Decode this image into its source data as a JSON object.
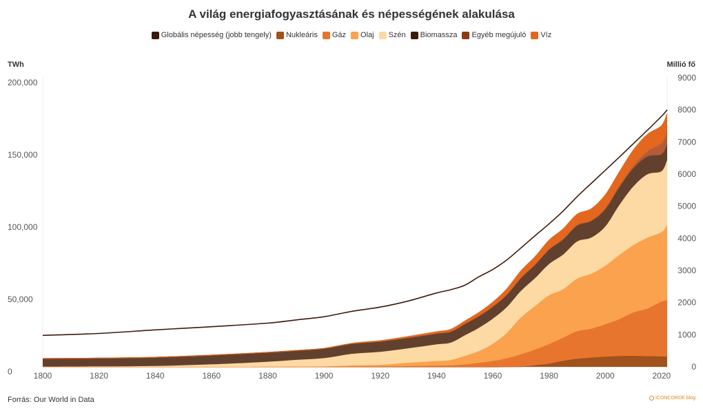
{
  "chart_data": {
    "type": "area",
    "title": "A világ energiafogyasztásának és népességének alakulása",
    "ylabel_left": "TWh",
    "ylabel_right": "Millió fő",
    "ylim_left": [
      0,
      200000
    ],
    "ylim_right": [
      0,
      9000
    ],
    "y_ticks_left": [
      "0",
      "50,000",
      "100,000",
      "150,000",
      "200,000"
    ],
    "y_ticks_right": [
      "0",
      "1000",
      "2000",
      "3000",
      "4000",
      "5000",
      "6000",
      "7000",
      "8000",
      "9000"
    ],
    "x_ticks": [
      "1800",
      "1820",
      "1840",
      "1860",
      "1880",
      "1900",
      "1920",
      "1940",
      "1960",
      "1980",
      "2000",
      "2020"
    ],
    "grid": true,
    "legend_position": "top",
    "x": [
      1800,
      1820,
      1840,
      1860,
      1880,
      1890,
      1900,
      1910,
      1920,
      1930,
      1940,
      1945,
      1950,
      1955,
      1960,
      1965,
      1970,
      1975,
      1980,
      1985,
      1990,
      1995,
      2000,
      2005,
      2010,
      2015,
      2020,
      2022
    ],
    "series": [
      {
        "name": "Nukleáris",
        "color": "#a0521c",
        "axis": "left",
        "values": [
          0,
          0,
          0,
          0,
          0,
          0,
          0,
          0,
          0,
          0,
          0,
          0,
          0,
          0,
          0,
          100,
          200,
          1100,
          2200,
          4200,
          5600,
          6400,
          7000,
          7500,
          7600,
          7400,
          7200,
          7000
        ]
      },
      {
        "name": "Gáz",
        "color": "#e8752e",
        "axis": "left",
        "values": [
          0,
          0,
          0,
          0,
          0,
          0,
          100,
          200,
          300,
          500,
          800,
          1000,
          1600,
          2700,
          4000,
          5800,
          8500,
          10800,
          13500,
          15900,
          19000,
          20000,
          22400,
          25500,
          30000,
          33000,
          38000,
          39000
        ]
      },
      {
        "name": "Olaj",
        "color": "#faa24e",
        "axis": "left",
        "values": [
          0,
          0,
          0,
          0,
          100,
          200,
          200,
          800,
          1100,
          2300,
          3200,
          3700,
          5900,
          8100,
          11900,
          17600,
          25400,
          30000,
          33800,
          33500,
          36400,
          38000,
          40500,
          44400,
          46600,
          48900,
          48000,
          52000
        ]
      },
      {
        "name": "Szén",
        "color": "#fdd9a3",
        "axis": "left",
        "values": [
          100,
          300,
          600,
          1700,
          3400,
          4600,
          5700,
          8000,
          9000,
          10000,
          11500,
          12000,
          14200,
          16100,
          17400,
          17800,
          18400,
          19400,
          21600,
          24000,
          25700,
          25000,
          27200,
          34500,
          40600,
          43900,
          42200,
          45000
        ]
      },
      {
        "name": "Biomassza",
        "color": "#62402e",
        "axis": "left",
        "values": [
          5600,
          5700,
          6000,
          6400,
          6500,
          6500,
          6700,
          7000,
          7200,
          7400,
          7600,
          7700,
          8000,
          8200,
          8400,
          8700,
          9000,
          9300,
          10000,
          10500,
          11000,
          11400,
          11900,
          12300,
          12600,
          12300,
          11700,
          11100
        ]
      },
      {
        "name": "Egyéb megújuló",
        "color": "#b35c37",
        "axis": "left",
        "values": [
          0,
          0,
          0,
          0,
          0,
          0,
          0,
          0,
          0,
          0,
          0,
          0,
          0,
          0,
          0,
          0,
          100,
          100,
          200,
          300,
          400,
          500,
          600,
          900,
          1600,
          3500,
          7500,
          8500
        ]
      },
      {
        "name": "Víz",
        "color": "#e3671e",
        "axis": "left",
        "values": [
          0,
          0,
          0,
          0,
          0,
          0,
          100,
          300,
          500,
          800,
          1200,
          1500,
          1900,
          2400,
          3000,
          3900,
          4800,
          5400,
          6300,
          7000,
          7500,
          8000,
          9300,
          9700,
          11000,
          11800,
          12200,
          12600
        ]
      }
    ],
    "population": {
      "name": "Globális népesség (jobb tengely)",
      "color": "#3b1a0a",
      "axis": "right",
      "values": [
        980,
        1040,
        1150,
        1250,
        1360,
        1460,
        1560,
        1730,
        1860,
        2050,
        2300,
        2400,
        2540,
        2800,
        3030,
        3330,
        3700,
        4080,
        4450,
        4850,
        5300,
        5710,
        6120,
        6530,
        6950,
        7370,
        7800,
        8000
      ]
    }
  },
  "source": "Forrás: Our World in Data",
  "brand": "ICONCORDE blog"
}
